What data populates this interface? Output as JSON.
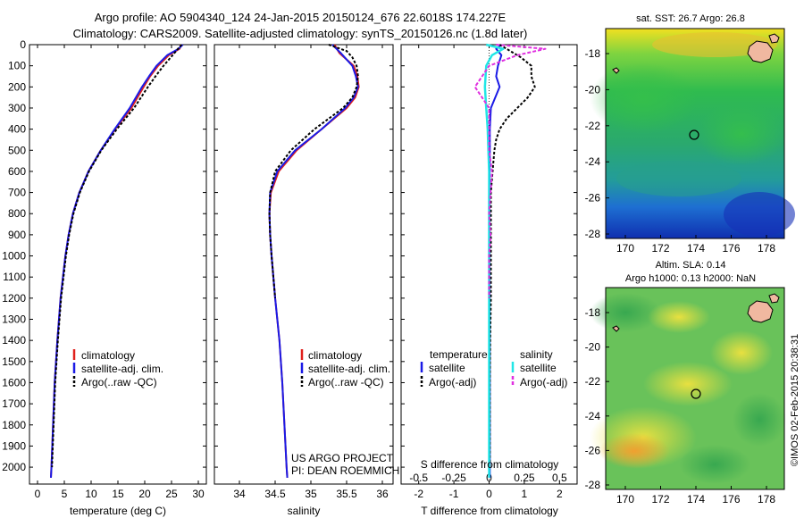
{
  "header": {
    "line1": "Argo profile: AO 5904340_124 24-Jan-2015 20150124_676 22.6018S 174.227E",
    "line2": "Climatology: CARS2009. Satellite-adjusted climatology: synTS_20150126.nc (1.8d later)"
  },
  "colors": {
    "clim": "#e0201c",
    "sat": "#1a1ae6",
    "argo": "#000000",
    "sat_s": "#22e6e6",
    "argo_s": "#e030e0"
  },
  "chart_data": [
    {
      "type": "line",
      "name": "temperature",
      "xlabel": "temperature (deg C)",
      "xlim": [
        -1.5,
        31.5
      ],
      "ylim": [
        2080,
        0
      ],
      "xticks": [
        0,
        5,
        10,
        15,
        20,
        25,
        30
      ],
      "yticks": [
        0,
        100,
        200,
        300,
        400,
        500,
        600,
        700,
        800,
        900,
        1000,
        1100,
        1200,
        1300,
        1400,
        1500,
        1600,
        1700,
        1800,
        1900,
        2000
      ],
      "legend": [
        "climatology",
        "satellite-adj. clim.",
        "Argo(..raw -QC)"
      ],
      "series": [
        {
          "name": "climatology",
          "depth": [
            0,
            20,
            50,
            100,
            150,
            200,
            300,
            400,
            500,
            600,
            700,
            800,
            900,
            1000,
            1200,
            1400,
            1600,
            1800,
            2000,
            2050
          ],
          "values": [
            26.8,
            26.5,
            24.5,
            22.5,
            21,
            19.8,
            17.5,
            14.5,
            11.8,
            9.5,
            7.8,
            6.6,
            5.8,
            5.2,
            4.3,
            3.7,
            3.2,
            2.9,
            2.6,
            2.5
          ]
        },
        {
          "name": "satellite-adj. clim.",
          "depth": [
            0,
            20,
            50,
            100,
            150,
            200,
            300,
            400,
            500,
            600,
            700,
            800,
            900,
            1000,
            1200,
            1400,
            1600,
            1800,
            2000,
            2050
          ],
          "values": [
            27.1,
            26.3,
            24.2,
            22.2,
            20.8,
            19.5,
            17.2,
            14.4,
            11.8,
            9.5,
            7.8,
            6.6,
            5.8,
            5.2,
            4.3,
            3.7,
            3.2,
            2.9,
            2.6,
            2.5
          ]
        },
        {
          "name": "Argo(..raw -QC)",
          "depth": [
            0,
            20,
            50,
            100,
            150,
            200,
            300,
            400,
            500,
            600,
            700,
            800,
            900,
            1000,
            1200,
            1400,
            1600,
            1800,
            2000
          ],
          "values": [
            26.9,
            26.2,
            25.2,
            23.5,
            22,
            20.6,
            18,
            14.8,
            11.9,
            9.6,
            7.9,
            6.7,
            5.9,
            5.3,
            4.4,
            3.8,
            3.3,
            3,
            2.7
          ]
        }
      ]
    },
    {
      "type": "line",
      "name": "salinity",
      "xlabel": "salinity",
      "xlim": [
        33.65,
        36.15
      ],
      "ylim": [
        2080,
        0
      ],
      "xticks": [
        34,
        34.5,
        35,
        35.5,
        36
      ],
      "legend": [
        "climatology",
        "satellite-adj. clim.",
        "Argo(..raw -QC)"
      ],
      "series": [
        {
          "name": "climatology",
          "depth": [
            0,
            40,
            100,
            150,
            200,
            250,
            300,
            400,
            500,
            600,
            700,
            800,
            900,
            1000,
            1200,
            1400,
            1600,
            1800,
            2000,
            2050
          ],
          "values": [
            35.33,
            35.4,
            35.6,
            35.65,
            35.67,
            35.62,
            35.5,
            35.15,
            34.8,
            34.55,
            34.44,
            34.42,
            34.43,
            34.45,
            34.5,
            34.56,
            34.6,
            34.63,
            34.66,
            34.67
          ]
        },
        {
          "name": "satellite-adj. clim.",
          "depth": [
            0,
            40,
            100,
            150,
            200,
            250,
            300,
            400,
            500,
            600,
            700,
            800,
            900,
            1000,
            1200,
            1400,
            1600,
            1800,
            2000,
            2050
          ],
          "values": [
            35.3,
            35.42,
            35.58,
            35.63,
            35.66,
            35.6,
            35.48,
            35.15,
            34.78,
            34.53,
            34.43,
            34.42,
            34.43,
            34.45,
            34.5,
            34.56,
            34.6,
            34.63,
            34.66,
            34.67
          ]
        },
        {
          "name": "Argo(..raw -QC)",
          "depth": [
            0,
            30,
            60,
            100,
            150,
            200,
            250,
            300,
            400,
            500,
            600,
            700,
            800,
            900,
            1000,
            1200
          ],
          "values": [
            35.25,
            35.5,
            35.58,
            35.64,
            35.66,
            35.64,
            35.58,
            35.45,
            35.05,
            34.72,
            34.5,
            34.43,
            34.42,
            34.43,
            34.45,
            34.5
          ]
        }
      ],
      "annotation": [
        "US ARGO PROJECT",
        "PI: DEAN ROEMMICH"
      ]
    },
    {
      "type": "line",
      "name": "difference",
      "xlabel": "T difference from climatology",
      "xlabel_top": "S difference from climatology",
      "xlim": [
        -2.5,
        2.5
      ],
      "ylim": [
        2080,
        0
      ],
      "xticks": [
        -2,
        -1,
        0,
        1,
        2
      ],
      "sticks": [
        -0.5,
        -0.25,
        0,
        0.25,
        0.5
      ],
      "sticklabels": [
        "-0.5",
        "-0.25",
        "0",
        "0.25",
        "0.5"
      ],
      "legend_headers": [
        "temperature",
        "salinity"
      ],
      "legend": [
        "satellite",
        "Argo(-adj)",
        "satellite",
        "Argo(-adj)"
      ],
      "series": [
        {
          "name": "T satellite",
          "depth": [
            0,
            20,
            50,
            100,
            150,
            200,
            300,
            400,
            500,
            700,
            1000,
            1500,
            2000,
            2050
          ],
          "values": [
            0.35,
            0.2,
            0.35,
            0.25,
            0.2,
            0.3,
            0.05,
            0.02,
            0.02,
            0.01,
            0.01,
            0.02,
            0.02,
            0.02
          ]
        },
        {
          "name": "T Argo(-adj)",
          "depth": [
            0,
            30,
            60,
            100,
            150,
            200,
            250,
            300,
            350,
            400,
            450,
            500,
            600,
            700,
            800,
            900,
            1000,
            1200,
            1400,
            1600,
            1800,
            2000
          ],
          "values": [
            0.3,
            0.6,
            0.9,
            1.2,
            1.2,
            1.3,
            1.1,
            0.8,
            0.5,
            0.3,
            0.2,
            0.15,
            0.1,
            0.05,
            0.05,
            0.05,
            0.05,
            0.05,
            0.03,
            0.02,
            0.02,
            0.02
          ]
        },
        {
          "name": "S satellite",
          "depth": [
            0,
            20,
            50,
            100,
            200,
            300,
            400,
            600,
            800,
            1000,
            1500,
            2000,
            2050
          ],
          "values": [
            -0.02,
            0.1,
            0.02,
            -0.02,
            -0.03,
            -0.02,
            -0.01,
            0,
            0,
            0,
            0,
            0,
            0
          ]
        },
        {
          "name": "S Argo(-adj)",
          "depth": [
            0,
            20,
            50,
            100,
            150,
            200,
            250,
            300,
            400,
            500,
            600,
            700,
            800,
            900,
            1000,
            1200
          ],
          "values": [
            0.05,
            0.4,
            0.2,
            0,
            -0.05,
            -0.1,
            -0.05,
            0,
            0,
            0,
            0.02,
            0.01,
            0,
            0.01,
            0,
            0
          ]
        }
      ]
    },
    {
      "type": "heatmap",
      "name": "sst-map",
      "title": "sat. SST: 26.7 Argo: 26.8",
      "xticks": [
        "170",
        "172",
        "174",
        "176",
        "178"
      ],
      "yticks": [
        "-18",
        "-20",
        "-22",
        "-24",
        "-26",
        "-28"
      ]
    },
    {
      "type": "heatmap",
      "name": "sla-map",
      "title1": "Altim. SLA: 0.14",
      "title2": "Argo h1000: 0.13 h2000: NaN",
      "xticks": [
        "170",
        "172",
        "174",
        "176",
        "178"
      ],
      "yticks": [
        "-18",
        "-20",
        "-22",
        "-24",
        "-26",
        "-28"
      ]
    }
  ],
  "watermark": "©IMOS 02-Feb-2015 20:38:31"
}
